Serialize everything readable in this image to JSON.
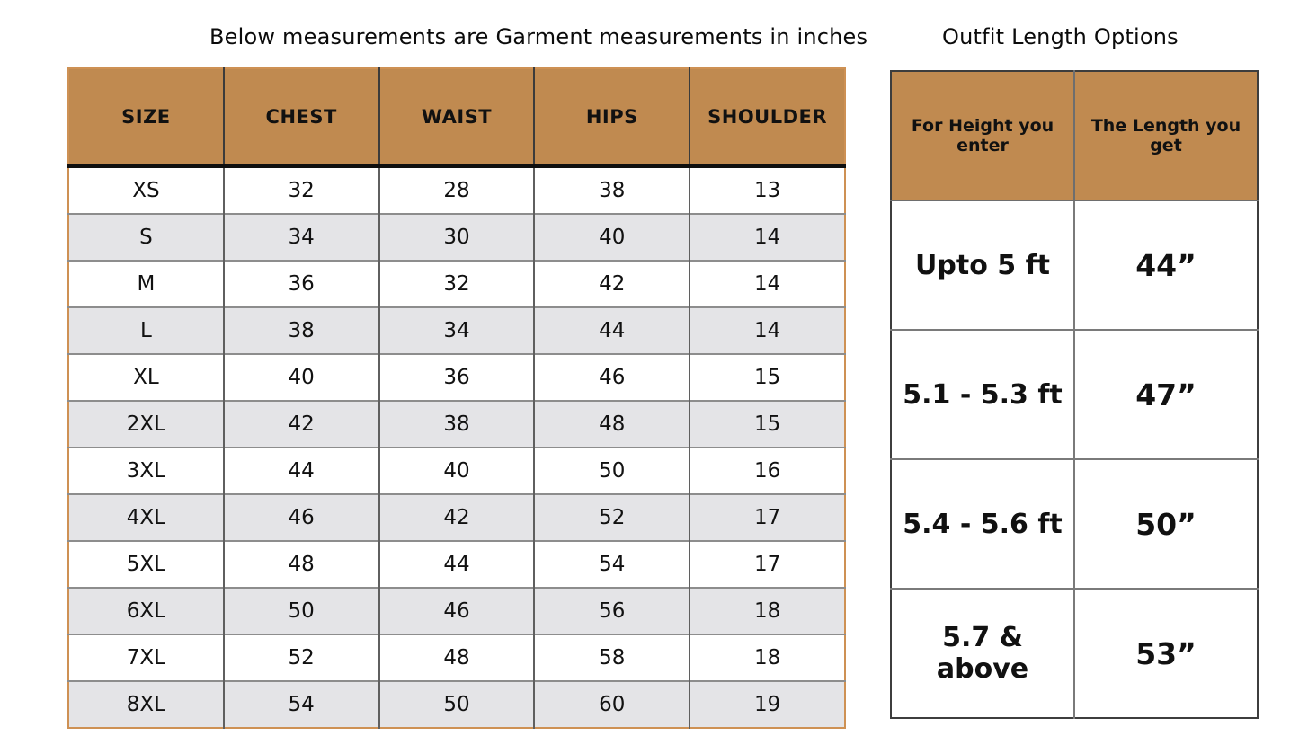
{
  "page": {
    "left_title": "Below measurements are Garment measurements in inches",
    "right_title": "Outfit Length Options"
  },
  "colors": {
    "header_brown": "#C08A50",
    "alt_row_gray": "#E4E4E7",
    "measurement_table_border": "#CE9154",
    "length_table_border": "#3D3D3D",
    "gridline_gray": "#7a7a7a",
    "header_divider_black": "#0f0f0f"
  },
  "chart_data": [
    {
      "type": "table",
      "title": "Below measurements are Garment measurements in inches",
      "columns": [
        "SIZE",
        "CHEST",
        "WAIST",
        "HIPS",
        "SHOULDER"
      ],
      "rows": [
        [
          "XS",
          "32",
          "28",
          "38",
          "13"
        ],
        [
          "S",
          "34",
          "30",
          "40",
          "14"
        ],
        [
          "M",
          "36",
          "32",
          "42",
          "14"
        ],
        [
          "L",
          "38",
          "34",
          "44",
          "14"
        ],
        [
          "XL",
          "40",
          "36",
          "46",
          "15"
        ],
        [
          "2XL",
          "42",
          "38",
          "48",
          "15"
        ],
        [
          "3XL",
          "44",
          "40",
          "50",
          "16"
        ],
        [
          "4XL",
          "46",
          "42",
          "52",
          "17"
        ],
        [
          "5XL",
          "48",
          "44",
          "54",
          "17"
        ],
        [
          "6XL",
          "50",
          "46",
          "56",
          "18"
        ],
        [
          "7XL",
          "52",
          "48",
          "58",
          "18"
        ],
        [
          "8XL",
          "54",
          "50",
          "60",
          "19"
        ]
      ],
      "units": "inches"
    },
    {
      "type": "table",
      "title": "Outfit Length Options",
      "columns": [
        "For Height you enter",
        "The Length you get"
      ],
      "rows": [
        [
          "Upto 5 ft",
          "44”"
        ],
        [
          "5.1 - 5.3 ft",
          "47”"
        ],
        [
          "5.4 - 5.6 ft",
          "50”"
        ],
        [
          "5.7 & above",
          "53”"
        ]
      ]
    }
  ]
}
